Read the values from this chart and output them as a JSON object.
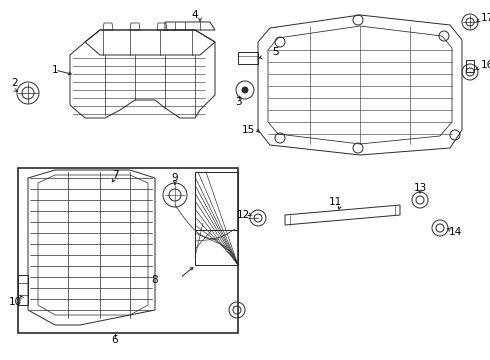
{
  "bg_color": "#ffffff",
  "line_color": "#2a2a2a",
  "fig_width": 4.9,
  "fig_height": 3.6,
  "dpi": 100,
  "label_fontsize": 7.5,
  "lw": 0.7
}
